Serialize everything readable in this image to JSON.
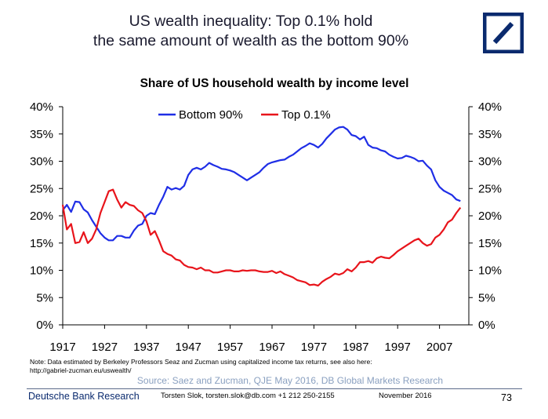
{
  "header": {
    "title_line1": "US wealth inequality: Top 0.1% hold",
    "title_line2": "the same amount of wealth as the bottom 90%"
  },
  "colors": {
    "brand": "#0a2a6e",
    "bottom90": "#1f2ee6",
    "top01": "#e8141b",
    "source": "#8aa0c0"
  },
  "chart_data": {
    "type": "line",
    "title": "Share of US household wealth by income level",
    "xlabel": "",
    "ylabel": "",
    "xlim": [
      1917,
      2014
    ],
    "ylim": [
      0,
      40
    ],
    "xticks": [
      1917,
      1927,
      1937,
      1947,
      1957,
      1967,
      1977,
      1987,
      1997,
      2007
    ],
    "yticks": [
      0,
      5,
      10,
      15,
      20,
      25,
      30,
      35,
      40
    ],
    "ytick_labels": [
      "0%",
      "5%",
      "10%",
      "15%",
      "20%",
      "25%",
      "30%",
      "35%",
      "40%"
    ],
    "secondary_y": true,
    "grid": false,
    "legend": "top-center",
    "series": [
      {
        "name": "Bottom 90%",
        "color": "#1f2ee6",
        "x": [
          1917,
          1918,
          1919,
          1920,
          1921,
          1922,
          1923,
          1924,
          1925,
          1926,
          1927,
          1928,
          1929,
          1930,
          1931,
          1932,
          1933,
          1934,
          1935,
          1936,
          1937,
          1938,
          1939,
          1940,
          1941,
          1942,
          1943,
          1944,
          1945,
          1946,
          1947,
          1948,
          1949,
          1950,
          1951,
          1952,
          1953,
          1954,
          1955,
          1956,
          1957,
          1958,
          1959,
          1960,
          1961,
          1962,
          1963,
          1964,
          1965,
          1966,
          1967,
          1968,
          1969,
          1970,
          1971,
          1972,
          1973,
          1974,
          1975,
          1976,
          1977,
          1978,
          1979,
          1980,
          1981,
          1982,
          1983,
          1984,
          1985,
          1986,
          1987,
          1988,
          1989,
          1990,
          1991,
          1992,
          1993,
          1994,
          1995,
          1996,
          1997,
          1998,
          1999,
          2000,
          2001,
          2002,
          2003,
          2004,
          2005,
          2006,
          2007,
          2008,
          2009,
          2010,
          2011,
          2012
        ],
        "values": [
          21.0,
          22.0,
          20.7,
          22.6,
          22.5,
          21.2,
          20.6,
          19.2,
          18.0,
          16.8,
          16.0,
          15.5,
          15.5,
          16.3,
          16.3,
          16.0,
          16.0,
          17.3,
          18.2,
          18.5,
          20.0,
          20.5,
          20.3,
          22.0,
          23.5,
          25.3,
          24.8,
          25.1,
          24.8,
          25.5,
          27.5,
          28.5,
          28.8,
          28.5,
          29.0,
          29.7,
          29.3,
          29.0,
          28.6,
          28.5,
          28.3,
          28.0,
          27.5,
          27.0,
          26.5,
          27.0,
          27.5,
          28.0,
          28.8,
          29.5,
          29.8,
          30.0,
          30.2,
          30.3,
          30.8,
          31.2,
          31.8,
          32.4,
          32.8,
          33.3,
          33.0,
          32.5,
          33.2,
          34.2,
          35.0,
          35.8,
          36.2,
          36.3,
          35.8,
          34.8,
          34.6,
          34.0,
          34.5,
          33.0,
          32.5,
          32.4,
          32.0,
          31.8,
          31.2,
          30.8,
          30.5,
          30.6,
          31.0,
          30.8,
          30.5,
          30.0,
          30.1,
          29.2,
          28.5,
          26.5,
          25.3,
          24.6,
          24.2,
          23.8,
          23.0,
          22.7
        ]
      },
      {
        "name": "Top 0.1%",
        "color": "#e8141b",
        "x": [
          1917,
          1918,
          1919,
          1920,
          1921,
          1922,
          1923,
          1924,
          1925,
          1926,
          1927,
          1928,
          1929,
          1930,
          1931,
          1932,
          1933,
          1934,
          1935,
          1936,
          1937,
          1938,
          1939,
          1940,
          1941,
          1942,
          1943,
          1944,
          1945,
          1946,
          1947,
          1948,
          1949,
          1950,
          1951,
          1952,
          1953,
          1954,
          1955,
          1956,
          1957,
          1958,
          1959,
          1960,
          1961,
          1962,
          1963,
          1964,
          1965,
          1966,
          1967,
          1968,
          1969,
          1970,
          1971,
          1972,
          1973,
          1974,
          1975,
          1976,
          1977,
          1978,
          1979,
          1980,
          1981,
          1982,
          1983,
          1984,
          1985,
          1986,
          1987,
          1988,
          1989,
          1990,
          1991,
          1992,
          1993,
          1994,
          1995,
          1996,
          1997,
          1998,
          1999,
          2000,
          2001,
          2002,
          2003,
          2004,
          2005,
          2006,
          2007,
          2008,
          2009,
          2010,
          2011,
          2012
        ],
        "values": [
          22.0,
          17.5,
          18.5,
          15.0,
          15.2,
          17.0,
          15.0,
          15.8,
          17.5,
          20.5,
          22.5,
          24.5,
          24.8,
          23.0,
          21.5,
          22.5,
          22.0,
          21.8,
          21.0,
          20.5,
          19.0,
          16.5,
          17.2,
          15.5,
          13.5,
          13.0,
          12.7,
          12.0,
          11.8,
          11.0,
          10.6,
          10.5,
          10.2,
          10.5,
          10.0,
          10.0,
          9.6,
          9.6,
          9.8,
          10.0,
          10.0,
          9.8,
          9.8,
          10.0,
          9.9,
          10.0,
          10.0,
          9.8,
          9.7,
          9.7,
          9.9,
          9.5,
          9.8,
          9.3,
          9.0,
          8.7,
          8.2,
          8.0,
          7.8,
          7.3,
          7.4,
          7.2,
          7.9,
          8.4,
          8.8,
          9.4,
          9.2,
          9.5,
          10.2,
          9.8,
          10.5,
          11.5,
          11.5,
          11.7,
          11.4,
          12.2,
          12.5,
          12.3,
          12.2,
          12.8,
          13.5,
          14.0,
          14.5,
          15.0,
          15.5,
          15.8,
          15.0,
          14.5,
          14.8,
          16.0,
          16.5,
          17.5,
          18.8,
          19.3,
          20.5,
          21.5
        ]
      }
    ]
  },
  "note": {
    "line1": "Note: Data estimated by Berkeley Professors Seaz and Zucman using capitalized income tax returns, see also here:",
    "line2": "http://gabriel-zucman.eu/uswealth/"
  },
  "source": "Source: Saez and Zucman, QJE May 2016, DB Global Markets Research",
  "footer": {
    "brand": "Deutsche Bank Research",
    "contact": "Torsten Slok, torsten.slok@db.com  +1 212 250-2155",
    "date": "November 2016",
    "page": "73"
  }
}
